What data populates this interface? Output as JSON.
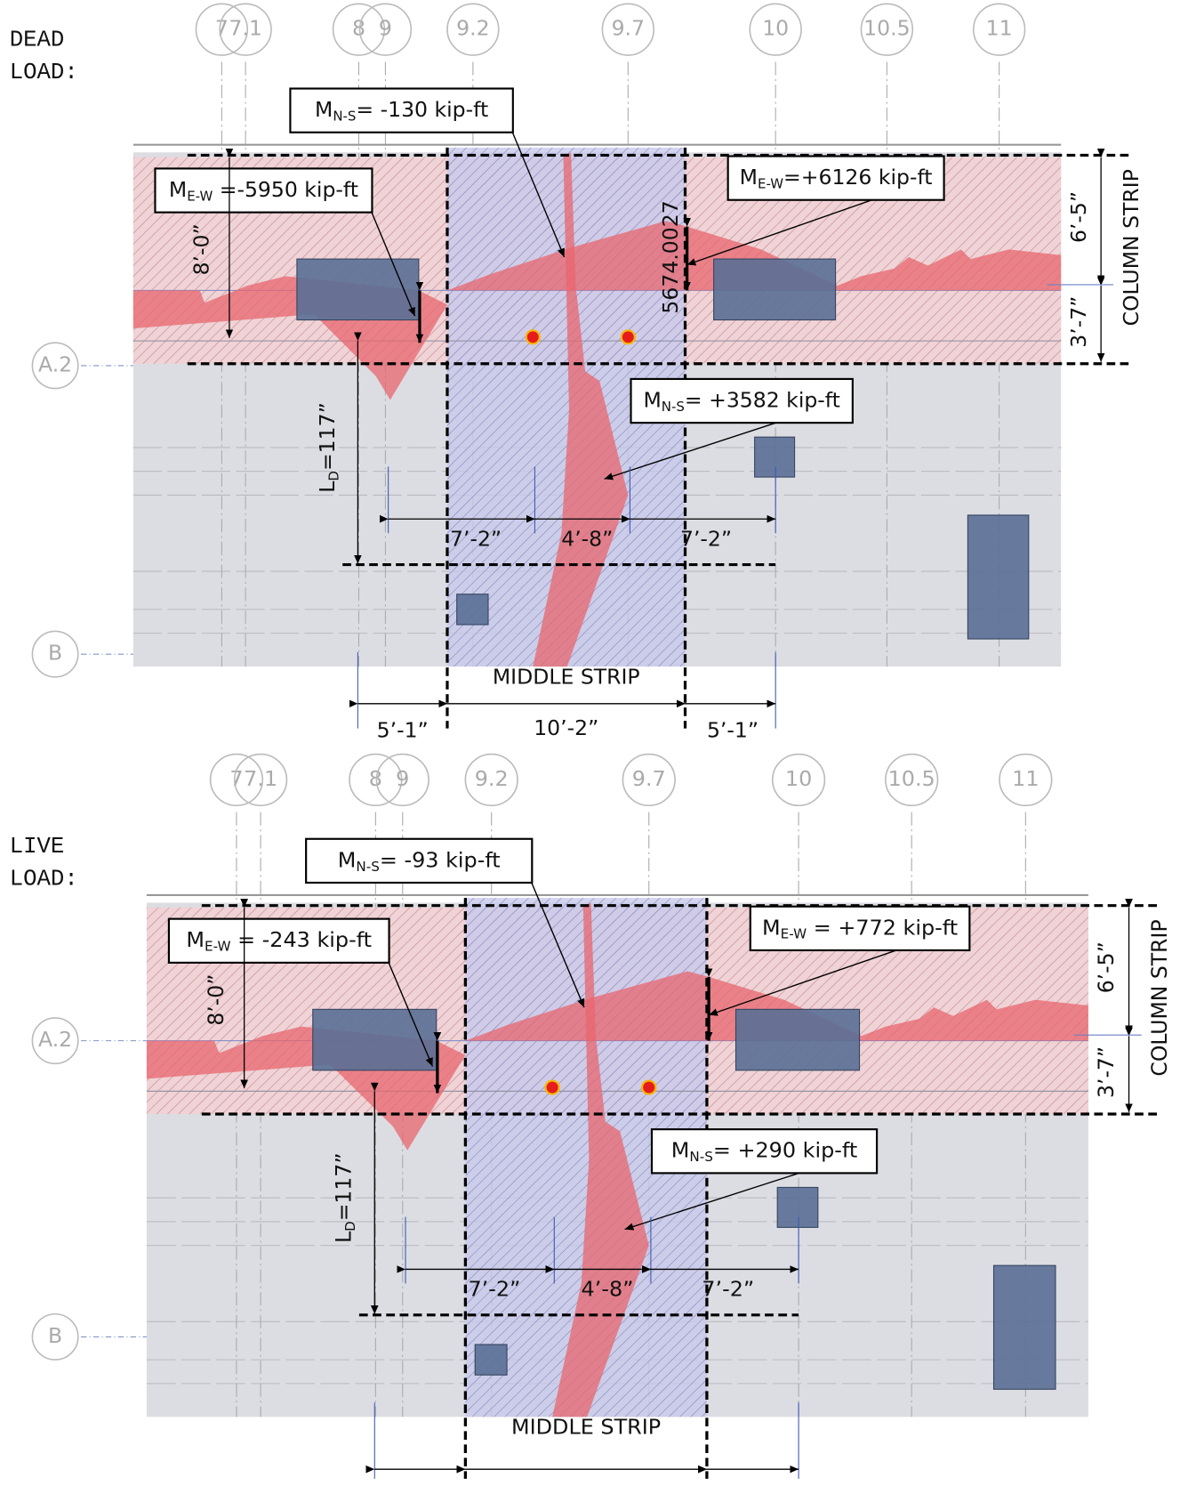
{
  "panels": [
    {
      "heading": [
        "DEAD",
        "LOAD:"
      ],
      "grid_top": [
        "7",
        "7.1",
        "8",
        "9",
        "9.2",
        "9.7",
        "10",
        "10.5",
        "11"
      ],
      "grid_side": [
        "A.2",
        "B"
      ],
      "faint_label": "5674.0027",
      "moments": [
        {
          "symbol": "M",
          "sub": "N-S",
          "text": "= -130 kip-ft"
        },
        {
          "symbol": "M",
          "sub": "E-W",
          "text": " =-5950 kip-ft"
        },
        {
          "symbol": "M",
          "sub": "E-W",
          "text": "=+6126 kip-ft"
        },
        {
          "symbol": "M",
          "sub": "N-S",
          "text": "= +3582 kip-ft"
        }
      ],
      "dimensions": {
        "col_height": "8’-0”",
        "col_top": "6’-5”",
        "col_bottom": "3’-7”",
        "bay_left": "7’-2”",
        "bay_mid": "4’-8”",
        "bay_right": "7’-2”",
        "strip_left": "5’-1”",
        "strip_mid": "10’-2”",
        "strip_right": "5’-1”"
      },
      "development_length": {
        "symbol": "L",
        "sub": "D",
        "text": "=117”"
      },
      "middle_strip": "MIDDLE STRIP",
      "column_strip": "COLUMN STRIP"
    },
    {
      "heading": [
        "LIVE",
        "LOAD:"
      ],
      "grid_top": [
        "7",
        "7.1",
        "8",
        "9",
        "9.2",
        "9.7",
        "10",
        "10.5",
        "11"
      ],
      "grid_side": [
        "A.2",
        "B"
      ],
      "moments": [
        {
          "symbol": "M",
          "sub": "N-S",
          "text": "= -93 kip-ft"
        },
        {
          "symbol": "M",
          "sub": "E-W",
          "text": " = -243 kip-ft"
        },
        {
          "symbol": "M",
          "sub": "E-W",
          "text": " = +772 kip-ft"
        },
        {
          "symbol": "M",
          "sub": "N-S",
          "text": "= +290 kip-ft"
        }
      ],
      "dimensions": {
        "col_height": "8’-0”",
        "col_top": "6’-5”",
        "col_bottom": "3’-7”",
        "bay_left": "7’-2”",
        "bay_mid": "4’-8”",
        "bay_right": "7’-2”"
      },
      "development_length": {
        "symbol": "L",
        "sub": "D",
        "text": "=117”"
      },
      "middle_strip": "MIDDLE STRIP",
      "column_strip": "COLUMN STRIP"
    }
  ]
}
